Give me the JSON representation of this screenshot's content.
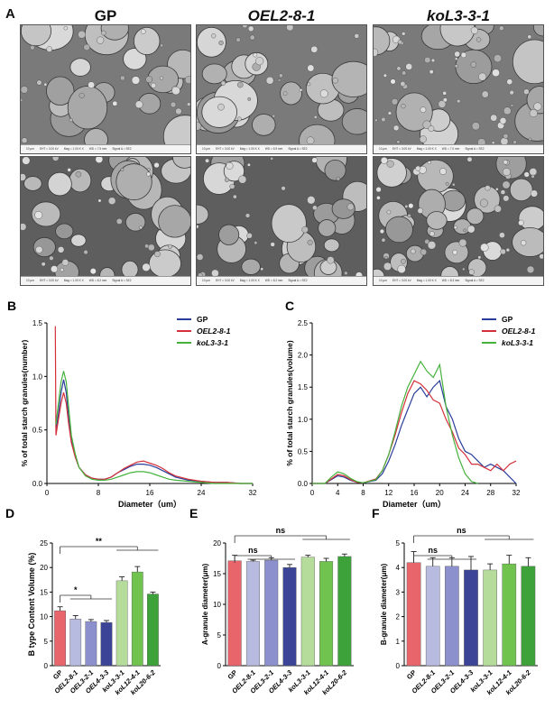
{
  "panel_a": {
    "letter": "A",
    "columns": [
      "GP",
      "OEL2-8-1",
      "koL3-3-1"
    ],
    "micrographs": [
      {
        "label_left": "10 μm",
        "footer": [
          "EHT = 3.00 kV",
          "Mag = 1.00 K X",
          "WD = 7.5 mm",
          "Signal A = SE2"
        ]
      },
      {
        "label_left": "10 μm",
        "footer": [
          "EHT = 3.00 kV",
          "Mag = 1.00 K X",
          "WD = 6.9 mm",
          "Signal A = SE2"
        ]
      },
      {
        "label_left": "10 μm",
        "footer": [
          "EHT = 3.00 kV",
          "Mag = 1.00 K X",
          "WD = 7.0 mm",
          "Signal A = SE2"
        ]
      },
      {
        "label_left": "10 μm",
        "footer": [
          "EHT = 3.00 kV",
          "Mag = 1.00 K X",
          "WD = 8.2 mm",
          "Signal A = SE2"
        ]
      },
      {
        "label_left": "10 μm",
        "footer": [
          "EHT = 3.00 kV",
          "Mag = 1.00 K X",
          "WD = 8.2 mm",
          "Signal A = SE2"
        ]
      },
      {
        "label_left": "10 μm",
        "footer": [
          "EHT = 3.00 kV",
          "Mag = 1.00 K X",
          "WD = 8.3 mm",
          "Signal A = SE2"
        ]
      }
    ]
  },
  "chart_data": [
    {
      "panel": "B",
      "type": "line",
      "xlabel": "Diameter（um）",
      "ylabel": "% of total starch granules(number)",
      "xlim": [
        0,
        32
      ],
      "ylim": [
        0,
        1.5
      ],
      "xticks": [
        "0",
        "8",
        "16",
        "24",
        "32"
      ],
      "yticks": [
        "0.0",
        "0.5",
        "1.0",
        "1.5"
      ],
      "legend_position": "top-right",
      "series": [
        {
          "name": "GP",
          "color": "#2a3d9a",
          "x": [
            1.4,
            1.8,
            2.2,
            2.6,
            3.0,
            3.4,
            3.8,
            4.4,
            5.0,
            6.0,
            7.0,
            8.0,
            9.0,
            10.0,
            11.0,
            12.0,
            13.0,
            14.0,
            15.0,
            16.0,
            17.0,
            18.0,
            19.0,
            20.0,
            22.0,
            24.0,
            26.0,
            28.0,
            30.0,
            32.0
          ],
          "values": [
            0.5,
            0.65,
            0.85,
            0.97,
            0.85,
            0.6,
            0.4,
            0.25,
            0.15,
            0.08,
            0.05,
            0.04,
            0.04,
            0.06,
            0.1,
            0.13,
            0.16,
            0.18,
            0.18,
            0.17,
            0.15,
            0.12,
            0.09,
            0.06,
            0.03,
            0.02,
            0.01,
            0.01,
            0.0,
            0.0
          ]
        },
        {
          "name": "OEL2-8-1",
          "color": "#d4303a",
          "x": [
            1.3,
            1.4,
            1.8,
            2.2,
            2.6,
            3.0,
            3.4,
            3.8,
            4.4,
            5.0,
            6.0,
            7.0,
            8.0,
            9.0,
            10.0,
            11.0,
            12.0,
            13.0,
            14.0,
            15.0,
            16.0,
            17.0,
            18.0,
            19.0,
            20.0,
            22.0,
            24.0,
            26.0,
            28.0,
            30.0,
            32.0
          ],
          "values": [
            1.47,
            0.45,
            0.6,
            0.75,
            0.85,
            0.75,
            0.55,
            0.38,
            0.25,
            0.15,
            0.08,
            0.05,
            0.04,
            0.04,
            0.06,
            0.1,
            0.14,
            0.17,
            0.2,
            0.21,
            0.19,
            0.17,
            0.14,
            0.1,
            0.07,
            0.04,
            0.02,
            0.01,
            0.01,
            0.0,
            0.0
          ]
        },
        {
          "name": "koL3-3-1",
          "color": "#45b23c",
          "x": [
            1.4,
            1.8,
            2.2,
            2.6,
            3.0,
            3.4,
            3.8,
            4.4,
            5.0,
            6.0,
            7.0,
            8.0,
            9.0,
            10.0,
            11.0,
            12.0,
            13.0,
            14.0,
            15.0,
            16.0,
            17.0,
            18.0,
            19.0,
            20.0,
            22.0,
            24.0,
            26.0,
            28.0,
            30.0,
            32.0
          ],
          "values": [
            0.55,
            0.75,
            0.95,
            1.05,
            0.95,
            0.7,
            0.45,
            0.28,
            0.15,
            0.07,
            0.04,
            0.03,
            0.03,
            0.04,
            0.06,
            0.08,
            0.1,
            0.11,
            0.11,
            0.1,
            0.08,
            0.06,
            0.04,
            0.03,
            0.02,
            0.01,
            0.0,
            0.0,
            0.0,
            0.0
          ]
        }
      ]
    },
    {
      "panel": "C",
      "type": "line",
      "xlabel": "Diameter（um）",
      "ylabel": "% of total starch granules(volume)",
      "xlim": [
        0,
        32
      ],
      "ylim": [
        0,
        2.5
      ],
      "xticks": [
        "0",
        "4",
        "8",
        "12",
        "16",
        "20",
        "24",
        "28",
        "32"
      ],
      "yticks": [
        "0.0",
        "0.5",
        "1.0",
        "1.5",
        "2.0",
        "2.5"
      ],
      "legend_position": "top-right",
      "series": [
        {
          "name": "GP",
          "color": "#2a3d9a",
          "x": [
            0,
            2,
            3,
            4,
            5,
            6,
            7,
            8,
            10,
            11,
            12,
            13,
            14,
            15,
            16,
            17,
            18,
            19,
            20,
            21,
            22,
            23,
            24,
            25,
            26,
            27,
            28,
            29,
            30,
            31,
            32
          ],
          "values": [
            0.0,
            0.0,
            0.06,
            0.12,
            0.1,
            0.05,
            0.02,
            0.01,
            0.05,
            0.15,
            0.35,
            0.6,
            0.9,
            1.15,
            1.4,
            1.5,
            1.35,
            1.5,
            1.6,
            1.2,
            1.0,
            0.7,
            0.5,
            0.45,
            0.35,
            0.25,
            0.3,
            0.25,
            0.2,
            0.1,
            0.0
          ]
        },
        {
          "name": "OEL2-8-1",
          "color": "#d4303a",
          "x": [
            0,
            2,
            3,
            4,
            5,
            6,
            7,
            8,
            10,
            11,
            12,
            13,
            14,
            15,
            16,
            17,
            18,
            19,
            20,
            21,
            22,
            23,
            24,
            25,
            26,
            27,
            28,
            29,
            30,
            31,
            32
          ],
          "values": [
            0.0,
            0.0,
            0.07,
            0.14,
            0.12,
            0.06,
            0.02,
            0.01,
            0.07,
            0.2,
            0.45,
            0.75,
            1.1,
            1.4,
            1.6,
            1.55,
            1.45,
            1.3,
            1.25,
            1.0,
            0.8,
            0.55,
            0.45,
            0.3,
            0.3,
            0.25,
            0.2,
            0.3,
            0.2,
            0.3,
            0.35
          ]
        },
        {
          "name": "koL3-3-1",
          "color": "#45b23c",
          "x": [
            0,
            2,
            3,
            4,
            5,
            6,
            7,
            8,
            10,
            11,
            12,
            13,
            14,
            15,
            16,
            17,
            18,
            19,
            20,
            21,
            22,
            23,
            24,
            25,
            26
          ],
          "values": [
            0.0,
            0.0,
            0.1,
            0.18,
            0.15,
            0.08,
            0.03,
            0.01,
            0.06,
            0.2,
            0.45,
            0.8,
            1.2,
            1.5,
            1.7,
            1.9,
            1.75,
            1.65,
            1.85,
            1.2,
            0.75,
            0.4,
            0.15,
            0.03,
            0.0
          ]
        }
      ]
    },
    {
      "panel": "D",
      "type": "bar",
      "ylabel": "B type Content Volume (%)",
      "ylim": [
        0,
        25
      ],
      "yticks": [
        "0",
        "5",
        "10",
        "15",
        "20",
        "25"
      ],
      "categories": [
        "GP",
        "OEL2-8-1",
        "OEL3-2-1",
        "OEL4-3-3",
        "koL3-3-1",
        "koL12-4-1",
        "koL20-6-2"
      ],
      "values": [
        11.2,
        9.5,
        9.0,
        8.8,
        17.3,
        19.1,
        14.6
      ],
      "errors": [
        0.8,
        0.7,
        0.4,
        0.4,
        0.8,
        1.1,
        0.4
      ],
      "colors": [
        "#e8656b",
        "#b8bbe0",
        "#8c90cc",
        "#3c4497",
        "#b6dc9c",
        "#71c350",
        "#3ea23a"
      ],
      "significance": [
        "*",
        "**"
      ]
    },
    {
      "panel": "E",
      "type": "bar",
      "ylabel": "A-granule diameter(μm)",
      "ylim": [
        0,
        20
      ],
      "yticks": [
        "0",
        "5",
        "10",
        "15",
        "20"
      ],
      "categories": [
        "GP",
        "OEL2-8-1",
        "OEL3-2-1",
        "OEL4-3-3",
        "koL3-3-1",
        "koL12-4-1",
        "koL20-6-2"
      ],
      "values": [
        17.1,
        17.0,
        17.2,
        16.0,
        17.7,
        17.0,
        17.8
      ],
      "errors": [
        0.9,
        0.2,
        0.4,
        0.5,
        0.3,
        0.5,
        0.4
      ],
      "colors": [
        "#e8656b",
        "#b8bbe0",
        "#8c90cc",
        "#3c4497",
        "#b6dc9c",
        "#71c350",
        "#3ea23a"
      ],
      "significance": [
        "ns",
        "ns"
      ]
    },
    {
      "panel": "F",
      "type": "bar",
      "ylabel": "B-granule diameter(μm)",
      "ylim": [
        0,
        5
      ],
      "yticks": [
        "0",
        "1",
        "2",
        "3",
        "4",
        "5"
      ],
      "categories": [
        "GP",
        "OEL2-8-1",
        "OEL3-2-1",
        "OEL4-3-3",
        "koL3-3-1",
        "koL12-4-1",
        "koL20-6-2"
      ],
      "values": [
        4.2,
        4.05,
        4.05,
        3.9,
        3.9,
        4.15,
        4.05
      ],
      "errors": [
        0.45,
        0.35,
        0.35,
        0.55,
        0.25,
        0.35,
        0.35
      ],
      "colors": [
        "#e8656b",
        "#b8bbe0",
        "#8c90cc",
        "#3c4497",
        "#b6dc9c",
        "#71c350",
        "#3ea23a"
      ],
      "significance": [
        "ns",
        "ns"
      ]
    }
  ]
}
